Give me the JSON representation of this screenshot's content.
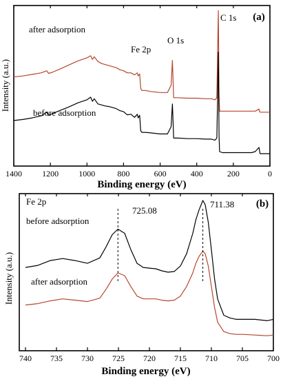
{
  "chart_data": [
    {
      "type": "line",
      "panel_label": "(a)",
      "xlabel": "Binding energy (eV)",
      "ylabel": "Intensity (a.u.)",
      "xlim": [
        1400,
        0
      ],
      "x_reversed": true,
      "xticks": [
        1400,
        1200,
        1000,
        800,
        600,
        400,
        200,
        0
      ],
      "grid": false,
      "annotations": [
        {
          "text": "C 1s",
          "x": 280
        },
        {
          "text": "O 1s",
          "x": 532
        },
        {
          "text": "Fe 2p",
          "x": 711
        }
      ],
      "series": [
        {
          "name": "after adsorption",
          "color": "#b5462a",
          "x": [
            1400,
            1350,
            1300,
            1250,
            1220,
            1210,
            1190,
            1150,
            1100,
            1050,
            1000,
            980,
            970,
            960,
            940,
            920,
            900,
            880,
            860,
            840,
            820,
            800,
            780,
            760,
            740,
            725,
            720,
            712,
            706,
            700,
            680,
            650,
            600,
            560,
            540,
            533,
            529,
            526,
            500,
            450,
            400,
            350,
            320,
            300,
            290,
            286,
            282,
            278,
            275,
            260,
            250,
            230,
            200,
            150,
            100,
            80,
            60,
            57,
            54,
            40,
            20,
            0
          ],
          "y": [
            0.36,
            0.37,
            0.385,
            0.4,
            0.42,
            0.395,
            0.405,
            0.435,
            0.475,
            0.515,
            0.545,
            0.565,
            0.53,
            0.555,
            0.51,
            0.49,
            0.48,
            0.47,
            0.46,
            0.45,
            0.43,
            0.42,
            0.4,
            0.4,
            0.38,
            0.4,
            0.37,
            0.39,
            0.25,
            0.23,
            0.23,
            0.22,
            0.21,
            0.21,
            0.28,
            0.52,
            0.32,
            0.16,
            0.16,
            0.155,
            0.155,
            0.15,
            0.15,
            0.14,
            0.16,
            0.58,
            1.0,
            0.2,
            0.03,
            0.03,
            0.03,
            0.03,
            0.03,
            0.03,
            0.03,
            0.03,
            0.05,
            0.03,
            0.02,
            0.02,
            0.02,
            0.02
          ]
        },
        {
          "name": "before adsorption",
          "color": "#000000",
          "x": [
            1400,
            1350,
            1300,
            1250,
            1220,
            1210,
            1190,
            1150,
            1100,
            1050,
            1000,
            980,
            970,
            960,
            940,
            920,
            900,
            880,
            860,
            840,
            820,
            800,
            780,
            760,
            740,
            725,
            720,
            712,
            706,
            700,
            680,
            650,
            600,
            560,
            540,
            533,
            529,
            526,
            500,
            450,
            400,
            350,
            320,
            300,
            290,
            286,
            282,
            278,
            275,
            260,
            250,
            230,
            200,
            150,
            100,
            80,
            60,
            57,
            54,
            40,
            20,
            0
          ],
          "y": [
            -0.06,
            -0.05,
            -0.035,
            -0.015,
            0.02,
            -0.01,
            0.005,
            0.035,
            0.07,
            0.11,
            0.14,
            0.165,
            0.125,
            0.15,
            0.1,
            0.09,
            0.08,
            0.075,
            0.065,
            0.055,
            0.035,
            0.025,
            -0.005,
            0.0,
            -0.03,
            0.0,
            -0.035,
            -0.01,
            -0.16,
            -0.175,
            -0.175,
            -0.18,
            -0.19,
            -0.19,
            -0.12,
            0.1,
            -0.08,
            -0.23,
            -0.23,
            -0.235,
            -0.235,
            -0.24,
            -0.24,
            -0.25,
            -0.23,
            0.15,
            0.6,
            -0.2,
            -0.36,
            -0.37,
            -0.37,
            -0.37,
            -0.37,
            -0.37,
            -0.37,
            -0.36,
            -0.32,
            -0.35,
            -0.38,
            -0.38,
            -0.38,
            -0.38
          ]
        }
      ],
      "ylim": [
        -0.5,
        1.05
      ]
    },
    {
      "type": "line",
      "panel_label": "(b)",
      "xlabel": "Binding energy (eV)",
      "ylabel": "Intensity (a.u.)",
      "xlim": [
        741,
        700
      ],
      "x_reversed": true,
      "xticks": [
        740,
        735,
        730,
        725,
        720,
        715,
        710,
        705,
        700
      ],
      "grid": false,
      "corner_label": "Fe 2p",
      "annotations": [
        {
          "text": "725.08",
          "x": 725.08
        },
        {
          "text": "711.38",
          "x": 711.38
        }
      ],
      "series": [
        {
          "name": "before adsorption",
          "color": "#000000",
          "x": [
            740,
            738,
            736,
            734,
            732,
            730,
            728,
            727,
            726,
            725.08,
            724,
            723,
            722,
            721,
            720,
            719,
            718,
            717,
            716,
            715,
            714,
            713,
            712.5,
            712,
            711.38,
            711,
            710.5,
            710,
            709.5,
            709,
            708,
            707,
            706,
            705,
            703,
            701,
            700
          ],
          "y": [
            0.61,
            0.625,
            0.66,
            0.675,
            0.66,
            0.64,
            0.68,
            0.76,
            0.85,
            0.89,
            0.86,
            0.74,
            0.64,
            0.61,
            0.605,
            0.6,
            0.585,
            0.575,
            0.58,
            0.62,
            0.71,
            0.86,
            0.96,
            1.03,
            1.1,
            1.07,
            0.94,
            0.74,
            0.53,
            0.38,
            0.26,
            0.24,
            0.23,
            0.23,
            0.23,
            0.22,
            0.23
          ]
        },
        {
          "name": "after adsorption",
          "color": "#b5462a",
          "x": [
            740,
            738,
            736,
            734,
            732,
            730,
            728,
            727,
            726,
            725.08,
            724,
            723,
            722,
            721,
            720,
            719,
            718,
            717,
            716,
            715,
            714,
            713,
            712.5,
            712,
            711.38,
            711,
            710.5,
            710,
            709.5,
            709,
            708,
            707,
            706,
            705,
            703,
            701,
            700
          ],
          "y": [
            0.335,
            0.345,
            0.365,
            0.38,
            0.37,
            0.36,
            0.385,
            0.45,
            0.525,
            0.57,
            0.55,
            0.47,
            0.4,
            0.38,
            0.38,
            0.38,
            0.37,
            0.365,
            0.37,
            0.4,
            0.47,
            0.57,
            0.64,
            0.69,
            0.73,
            0.71,
            0.62,
            0.47,
            0.32,
            0.21,
            0.14,
            0.125,
            0.12,
            0.12,
            0.115,
            0.11,
            0.115
          ]
        }
      ],
      "ylim": [
        0.0,
        1.15
      ]
    }
  ]
}
